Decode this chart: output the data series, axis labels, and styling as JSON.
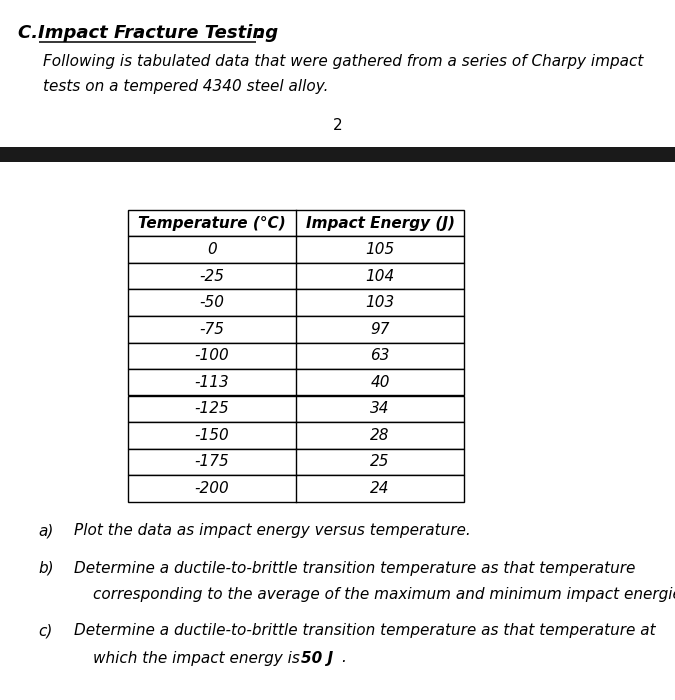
{
  "title_letter": "C.",
  "title_text": "Impact Fracture Testing",
  "title_colon": ":",
  "subtitle_line1": "Following is tabulated data that were gathered from a series of Charpy impact",
  "subtitle_line2": "tests on a tempered 4340 steel alloy.",
  "page_number": "2",
  "col_headers": [
    "Temperature (°C)",
    "Impact Energy (J)"
  ],
  "temperatures": [
    "0",
    "-25",
    "-50",
    "-75",
    "-100",
    "-113",
    "-125",
    "-150",
    "-175",
    "-200"
  ],
  "impact_energies": [
    "105",
    "104",
    "103",
    "97",
    "63",
    "40",
    "34",
    "28",
    "25",
    "24"
  ],
  "black_bar_color": "#1a1a1a",
  "table_border_color": "#000000",
  "background_color": "#ffffff",
  "qa_text": "Plot the data as impact energy versus temperature.",
  "qb_line1": "Determine a ductile-to-brittle transition temperature as that temperature",
  "qb_line2": "corresponding to the average of the maximum and minimum impact energies.",
  "qc_line1": "Determine a ductile-to-brittle transition temperature as that temperature at",
  "qc_line2_normal": "which the impact energy is ",
  "qc_line2_bold": "50 J",
  "qc_line2_end": ".",
  "font_size_title": 13,
  "font_size_body": 11,
  "font_size_table": 11
}
